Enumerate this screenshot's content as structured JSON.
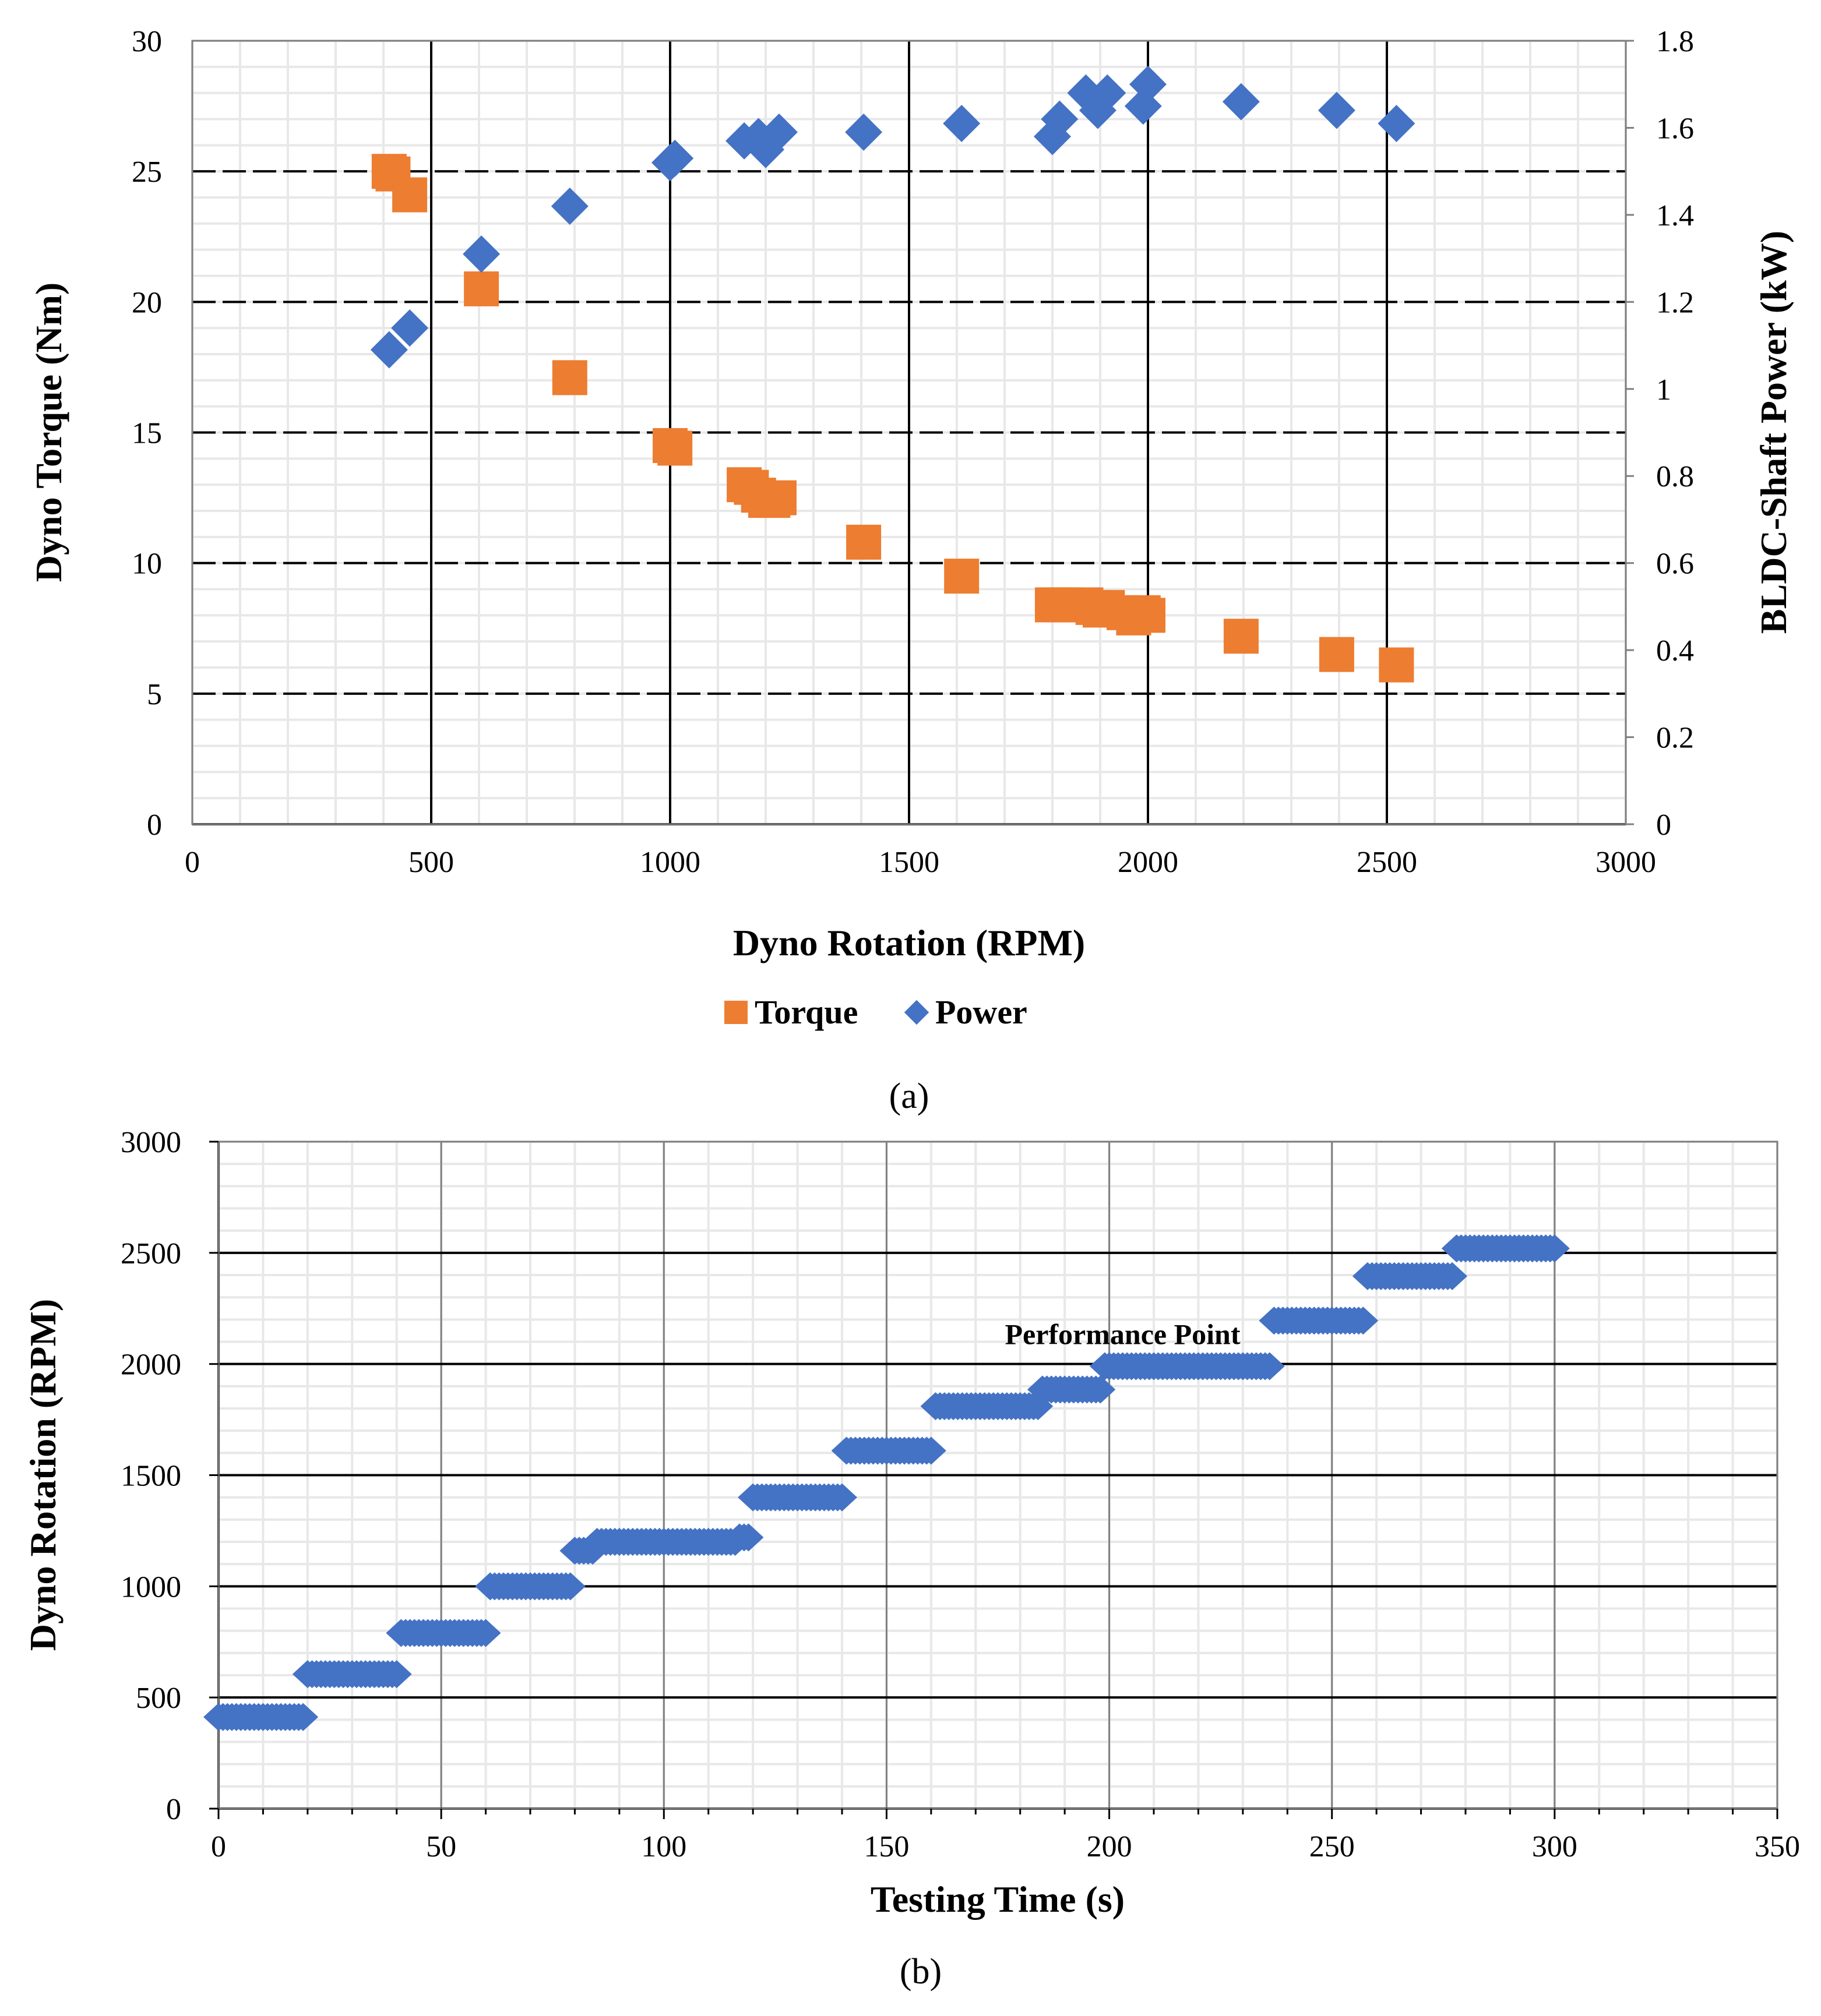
{
  "chart_data": [
    {
      "type": "scatter",
      "panel": "a",
      "caption": "(a)",
      "xlabel": "Dyno  Rotation (RPM)",
      "ylabel": "Dyno Torque (Nm)",
      "y2label": "BLDC-Shaft  Power (kW)",
      "xlim": [
        0,
        3000
      ],
      "ylim": [
        0,
        30
      ],
      "y2lim": [
        0,
        1.8
      ],
      "xticks": [
        "0",
        "500",
        "1000",
        "1500",
        "2000",
        "2500",
        "3000"
      ],
      "yticks": [
        "0",
        "5",
        "10",
        "15",
        "20",
        "25",
        "30"
      ],
      "y2ticks": [
        "0",
        "0.2",
        "0.4",
        "0.6",
        "0.8",
        "1",
        "1.2",
        "1.4",
        "1.6",
        "1.8"
      ],
      "grid": true,
      "legend_position": "bottom-center",
      "series": [
        {
          "name": "Torque",
          "axis": "left",
          "marker": "square",
          "color": "#ED7D31",
          "points": [
            [
              412,
              25.0
            ],
            [
              420,
              24.9
            ],
            [
              455,
              24.1
            ],
            [
              605,
              20.5
            ],
            [
              790,
              17.1
            ],
            [
              1000,
              14.5
            ],
            [
              1010,
              14.4
            ],
            [
              1155,
              13.0
            ],
            [
              1170,
              12.9
            ],
            [
              1185,
              12.6
            ],
            [
              1200,
              12.4
            ],
            [
              1215,
              12.4
            ],
            [
              1228,
              12.5
            ],
            [
              1405,
              10.8
            ],
            [
              1610,
              9.5
            ],
            [
              1800,
              8.4
            ],
            [
              1815,
              8.4
            ],
            [
              1830,
              8.4
            ],
            [
              1870,
              8.4
            ],
            [
              1885,
              8.3
            ],
            [
              1900,
              8.2
            ],
            [
              1915,
              8.3
            ],
            [
              1950,
              8.1
            ],
            [
              1970,
              7.9
            ],
            [
              1990,
              8.1
            ],
            [
              2000,
              8.0
            ],
            [
              2195,
              7.2
            ],
            [
              2395,
              6.5
            ],
            [
              2520,
              6.1
            ]
          ]
        },
        {
          "name": "Power",
          "axis": "right",
          "marker": "diamond",
          "color": "#4472C4",
          "points": [
            [
              412,
              1.09
            ],
            [
              455,
              1.14
            ],
            [
              605,
              1.31
            ],
            [
              790,
              1.42
            ],
            [
              1000,
              1.52
            ],
            [
              1010,
              1.53
            ],
            [
              1155,
              1.57
            ],
            [
              1185,
              1.58
            ],
            [
              1200,
              1.55
            ],
            [
              1228,
              1.59
            ],
            [
              1405,
              1.59
            ],
            [
              1610,
              1.61
            ],
            [
              1800,
              1.58
            ],
            [
              1815,
              1.62
            ],
            [
              1870,
              1.68
            ],
            [
              1895,
              1.64
            ],
            [
              1915,
              1.68
            ],
            [
              1990,
              1.65
            ],
            [
              2000,
              1.7
            ],
            [
              2195,
              1.66
            ],
            [
              2395,
              1.64
            ],
            [
              2520,
              1.61
            ]
          ]
        }
      ]
    },
    {
      "type": "scatter",
      "panel": "b",
      "caption": "(b)",
      "xlabel": "Testing Time (s)",
      "ylabel": "Dyno Rotation (RPM)",
      "xlim": [
        0,
        350
      ],
      "ylim": [
        0,
        3000
      ],
      "xticks": [
        "0",
        "50",
        "100",
        "150",
        "200",
        "250",
        "300",
        "350"
      ],
      "yticks": [
        "0",
        "500",
        "1000",
        "1500",
        "2000",
        "2500",
        "3000"
      ],
      "grid": true,
      "annotation": {
        "text": "Performance Point",
        "x": 203,
        "y": 2090
      },
      "series": [
        {
          "name": "Dyno Rotation",
          "marker": "diamond",
          "color": "#4472C4",
          "steps": [
            {
              "t_start": 0,
              "t_end": 19,
              "rpm": 412
            },
            {
              "t_start": 20,
              "t_end": 40,
              "rpm": 605
            },
            {
              "t_start": 41,
              "t_end": 60,
              "rpm": 790
            },
            {
              "t_start": 61,
              "t_end": 79,
              "rpm": 1000
            },
            {
              "t_start": 80,
              "t_end": 84,
              "rpm": 1160
            },
            {
              "t_start": 85,
              "t_end": 116,
              "rpm": 1200
            },
            {
              "t_start": 117,
              "t_end": 119,
              "rpm": 1220
            },
            {
              "t_start": 120,
              "t_end": 140,
              "rpm": 1400
            },
            {
              "t_start": 141,
              "t_end": 160,
              "rpm": 1610
            },
            {
              "t_start": 161,
              "t_end": 184,
              "rpm": 1810
            },
            {
              "t_start": 185,
              "t_end": 198,
              "rpm": 1885
            },
            {
              "t_start": 199,
              "t_end": 236,
              "rpm": 1990
            },
            {
              "t_start": 237,
              "t_end": 257,
              "rpm": 2195
            },
            {
              "t_start": 258,
              "t_end": 277,
              "rpm": 2395
            },
            {
              "t_start": 278,
              "t_end": 300,
              "rpm": 2520
            }
          ]
        }
      ]
    }
  ]
}
